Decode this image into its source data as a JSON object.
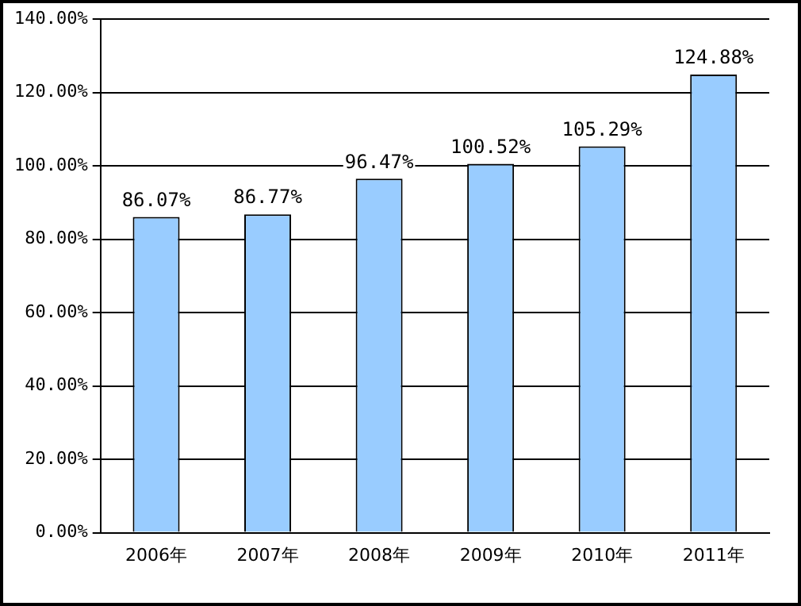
{
  "chart_data": {
    "type": "bar",
    "categories": [
      "2006年",
      "2007年",
      "2008年",
      "2009年",
      "2010年",
      "2011年"
    ],
    "values": [
      86.07,
      86.77,
      96.47,
      100.52,
      105.29,
      124.88
    ],
    "value_labels": [
      "86.07%",
      "86.77%",
      "96.47%",
      "100.52%",
      "105.29%",
      "124.88%"
    ],
    "color": "#99ccff",
    "ylim": [
      0,
      140
    ],
    "yticks": [
      {
        "value": 0,
        "label": "0.00%"
      },
      {
        "value": 20,
        "label": "20.00%"
      },
      {
        "value": 40,
        "label": "40.00%"
      },
      {
        "value": 60,
        "label": "60.00%"
      },
      {
        "value": 80,
        "label": "80.00%"
      },
      {
        "value": 100,
        "label": "100.00%"
      },
      {
        "value": 120,
        "label": "120.00%"
      },
      {
        "value": 140,
        "label": "140.00%"
      }
    ],
    "grid": "y"
  }
}
